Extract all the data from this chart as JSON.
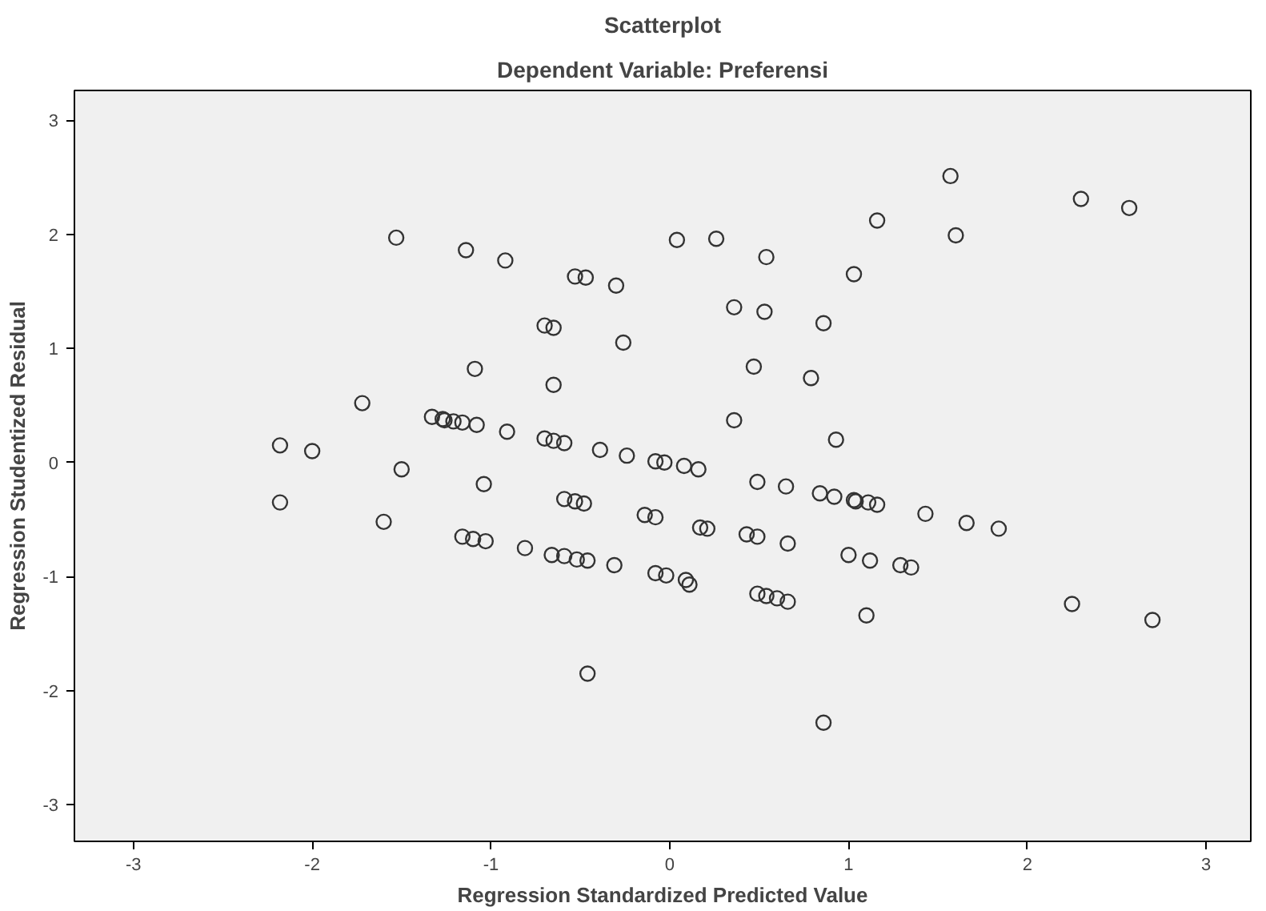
{
  "chart_data": {
    "type": "scatter",
    "title": "Scatterplot",
    "subtitle": "Dependent Variable: Preferensi",
    "xlabel": "Regression Standardized Predicted Value",
    "ylabel": "Regression Studentized Residual",
    "xlim": [
      -3.33,
      3.25
    ],
    "ylim": [
      -3.32,
      3.26
    ],
    "xticks": [
      -3,
      -2,
      -1,
      0,
      1,
      2,
      3
    ],
    "yticks": [
      -3,
      -2,
      -1,
      0,
      1,
      2,
      3
    ],
    "grid": false,
    "marker": "circle",
    "series": [
      {
        "color": "#333333",
        "x": [
          -2.18,
          -2.18,
          -2.0,
          -1.72,
          -1.53,
          -1.5,
          -1.6,
          -1.33,
          -1.27,
          -1.14,
          -0.92,
          -0.53,
          -0.47,
          -0.3,
          0.04,
          0.26,
          0.54,
          1.03,
          -0.7,
          -0.65,
          -0.26,
          0.36,
          0.53,
          0.86,
          -1.09,
          -0.65,
          0.47,
          0.79,
          -1.26,
          -1.21,
          -1.16,
          -1.08,
          -0.91,
          -0.7,
          -0.65,
          -0.59,
          -0.39,
          -0.24,
          -0.08,
          -0.03,
          0.08,
          0.16,
          0.36,
          0.93,
          -1.04,
          -0.59,
          -0.53,
          -0.48,
          -0.14,
          -0.08,
          0.49,
          0.65,
          0.84,
          0.92,
          1.03,
          0.17,
          0.21,
          0.43,
          0.49,
          0.66,
          1.0,
          -1.16,
          -1.1,
          -1.03,
          -0.81,
          -0.66,
          -0.59,
          -0.52,
          -0.46,
          -0.31,
          -0.08,
          -0.02,
          0.09,
          0.11,
          0.49,
          0.54,
          0.6,
          0.66,
          -0.46,
          0.86,
          1.57,
          1.16,
          1.6,
          2.3,
          2.57,
          1.04,
          1.11,
          1.16,
          1.43,
          1.66,
          1.84,
          1.12,
          1.29,
          1.35,
          1.1,
          2.25,
          2.7
        ],
        "values": [
          0.15,
          -0.35,
          0.1,
          0.52,
          1.97,
          -0.06,
          -0.52,
          0.4,
          0.38,
          1.86,
          1.77,
          1.63,
          1.62,
          1.55,
          1.95,
          1.96,
          1.8,
          1.65,
          1.2,
          1.18,
          1.05,
          1.36,
          1.32,
          1.22,
          0.82,
          0.68,
          0.84,
          0.74,
          0.37,
          0.36,
          0.35,
          0.33,
          0.27,
          0.21,
          0.19,
          0.17,
          0.11,
          0.06,
          0.01,
          0.0,
          -0.03,
          -0.06,
          0.37,
          0.2,
          -0.19,
          -0.32,
          -0.34,
          -0.36,
          -0.46,
          -0.48,
          -0.17,
          -0.21,
          -0.27,
          -0.3,
          -0.33,
          -0.57,
          -0.58,
          -0.63,
          -0.65,
          -0.71,
          -0.81,
          -0.65,
          -0.67,
          -0.69,
          -0.75,
          -0.81,
          -0.82,
          -0.85,
          -0.86,
          -0.9,
          -0.97,
          -0.99,
          -1.03,
          -1.07,
          -1.15,
          -1.17,
          -1.19,
          -1.22,
          -1.85,
          -2.28,
          2.51,
          2.12,
          1.99,
          2.31,
          2.23,
          -0.34,
          -0.35,
          -0.37,
          -0.45,
          -0.53,
          -0.58,
          -0.86,
          -0.9,
          -0.92,
          -1.34,
          -1.24,
          -1.38
        ]
      }
    ]
  }
}
